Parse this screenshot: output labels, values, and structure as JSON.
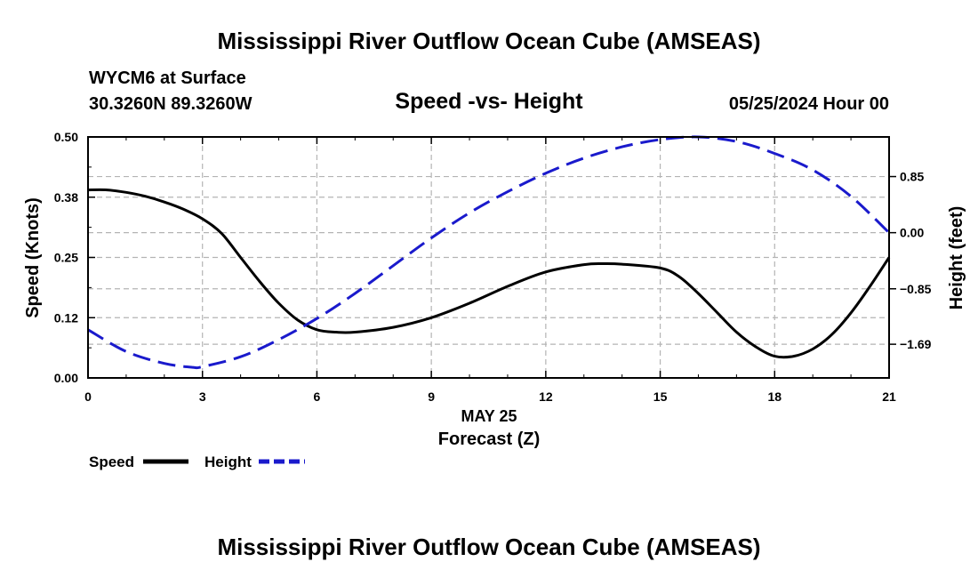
{
  "header": {
    "title": "Mississippi River Outflow Ocean Cube (AMSEAS)",
    "station": "WYCM6 at Surface",
    "coords": "30.3260N  89.3260W",
    "subtitle": "Speed -vs- Height",
    "datetime": "05/25/2024 Hour 00"
  },
  "footer": {
    "title": "Mississippi River Outflow Ocean Cube (AMSEAS)"
  },
  "colors": {
    "speed": "#000000",
    "height": "#1a1acc",
    "grid": "#b4b4b4"
  },
  "chart_data": {
    "type": "line",
    "title": "Speed -vs- Height",
    "xlabel": "Forecast (Z)",
    "xsublabel": "MAY 25",
    "ylabel": "Speed (Knots)",
    "y2label": "Height (feet)",
    "xlim": [
      0,
      21
    ],
    "ylim": [
      0,
      0.5
    ],
    "y2lim": [
      -2.2,
      1.45
    ],
    "xticks": [
      0,
      3,
      6,
      9,
      12,
      15,
      18,
      21
    ],
    "xtick_labels": [
      "0",
      "3",
      "6",
      "9",
      "12",
      "15",
      "18",
      "21"
    ],
    "yticks": [
      0,
      0.125,
      0.25,
      0.375,
      0.5
    ],
    "ytick_labels": [
      "0.00",
      "0.12",
      "0.25",
      "0.38",
      "0.50"
    ],
    "y2ticks": [
      -1.69,
      -0.85,
      0.0,
      0.85
    ],
    "y2tick_labels": [
      "−1.69",
      "−0.85",
      "0.00",
      "0.85"
    ],
    "grid": true,
    "legend": {
      "position": "bottom-left",
      "entries": [
        "Speed",
        "Height"
      ]
    },
    "series": [
      {
        "name": "Speed",
        "axis": "left",
        "style": "solid",
        "x": [
          0,
          0.5,
          1,
          1.5,
          2,
          2.5,
          3,
          3.5,
          4,
          4.5,
          5,
          5.5,
          6,
          6.5,
          7,
          8,
          9,
          10,
          11,
          12,
          13,
          13.5,
          14,
          15,
          15.5,
          16,
          16.5,
          17,
          17.5,
          18,
          18.5,
          19,
          19.5,
          20,
          20.5,
          21
        ],
        "values": [
          0.39,
          0.39,
          0.385,
          0.377,
          0.365,
          0.35,
          0.33,
          0.3,
          0.25,
          0.2,
          0.155,
          0.12,
          0.1,
          0.095,
          0.095,
          0.105,
          0.125,
          0.155,
          0.19,
          0.22,
          0.235,
          0.237,
          0.236,
          0.228,
          0.21,
          0.175,
          0.135,
          0.095,
          0.065,
          0.045,
          0.045,
          0.06,
          0.09,
          0.135,
          0.19,
          0.25
        ]
      },
      {
        "name": "Height",
        "axis": "right",
        "style": "dashed",
        "x": [
          0,
          1,
          2,
          2.75,
          3,
          4,
          5,
          6,
          7,
          8,
          9,
          10,
          11,
          12,
          13,
          14,
          15,
          16,
          17,
          18,
          19,
          20,
          21
        ],
        "values": [
          -1.47,
          -1.8,
          -1.98,
          -2.04,
          -2.03,
          -1.88,
          -1.62,
          -1.3,
          -0.92,
          -0.5,
          -0.08,
          0.3,
          0.62,
          0.9,
          1.13,
          1.3,
          1.41,
          1.45,
          1.38,
          1.2,
          0.95,
          0.55,
          0.0
        ]
      }
    ]
  }
}
